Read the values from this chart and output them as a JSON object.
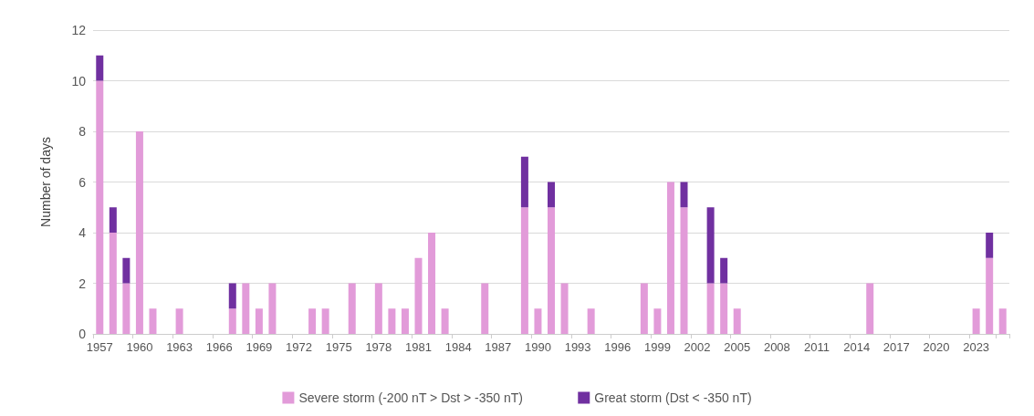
{
  "chart_data": {
    "type": "bar",
    "ylabel": "Number of days",
    "stacked": true,
    "grid": "y",
    "legend": "bottom",
    "ylim": [
      0,
      12
    ],
    "yticks": [
      0,
      2,
      4,
      6,
      8,
      10,
      12
    ],
    "categories": [
      "1957",
      null,
      null,
      "1960",
      null,
      null,
      "1963",
      null,
      null,
      "1966",
      null,
      null,
      "1969",
      null,
      null,
      "1972",
      null,
      null,
      "1975",
      null,
      null,
      "1978",
      null,
      null,
      "1981",
      null,
      null,
      "1984",
      null,
      null,
      "1987",
      null,
      null,
      "1990",
      null,
      null,
      "1993",
      null,
      null,
      "1996",
      null,
      null,
      "1999",
      null,
      null,
      "2002",
      null,
      null,
      "2005",
      null,
      null,
      "2008",
      null,
      null,
      "2011",
      null,
      null,
      "2014",
      null,
      null,
      "2017",
      null,
      null,
      "2020",
      null,
      null,
      "2023",
      null,
      null
    ],
    "series": [
      {
        "name": "Severe storm (-200 nT > Dst > -350 nT)",
        "color": "#e29bd9",
        "values": [
          10,
          4,
          2,
          8,
          1,
          0,
          1,
          0,
          0,
          0,
          1,
          2,
          1,
          2,
          0,
          0,
          1,
          1,
          0,
          2,
          0,
          2,
          1,
          1,
          3,
          4,
          1,
          0,
          0,
          2,
          0,
          0,
          5,
          1,
          5,
          2,
          0,
          1,
          0,
          0,
          0,
          2,
          1,
          6,
          5,
          0,
          2,
          2,
          1,
          0,
          0,
          0,
          0,
          0,
          0,
          0,
          0,
          0,
          2,
          0,
          0,
          0,
          0,
          0,
          0,
          0,
          1,
          3,
          1
        ]
      },
      {
        "name": "Great storm (Dst < -350 nT)",
        "color": "#7030a0",
        "values": [
          1,
          1,
          1,
          0,
          0,
          0,
          0,
          0,
          0,
          0,
          1,
          0,
          0,
          0,
          0,
          0,
          0,
          0,
          0,
          0,
          0,
          0,
          0,
          0,
          0,
          0,
          0,
          0,
          0,
          0,
          0,
          0,
          2,
          0,
          1,
          0,
          0,
          0,
          0,
          0,
          0,
          0,
          0,
          0,
          1,
          0,
          3,
          1,
          0,
          0,
          0,
          0,
          0,
          0,
          0,
          0,
          0,
          0,
          0,
          0,
          0,
          0,
          0,
          0,
          0,
          0,
          0,
          1,
          0
        ]
      }
    ]
  }
}
